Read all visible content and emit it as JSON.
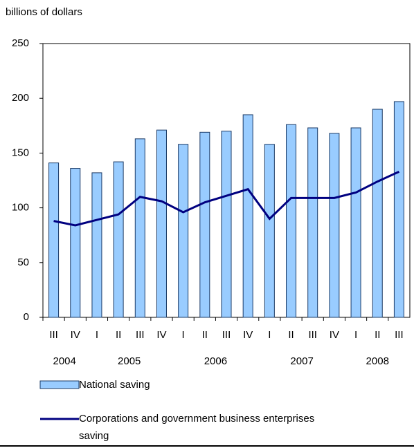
{
  "chart_data": {
    "type": "bar_line",
    "y_label": "billions of dollars",
    "categories": [
      "III",
      "IV",
      "I",
      "II",
      "III",
      "IV",
      "I",
      "II",
      "III",
      "IV",
      "I",
      "II",
      "III",
      "IV",
      "I",
      "II",
      "III"
    ],
    "years": [
      "2004",
      "2005",
      "2006",
      "2007",
      "2008"
    ],
    "series": [
      {
        "name": "National saving",
        "type": "bar",
        "color": "#99ccff",
        "values": [
          141,
          136,
          132,
          142,
          163,
          171,
          158,
          169,
          170,
          185,
          158,
          176,
          173,
          168,
          173,
          190,
          197
        ]
      },
      {
        "name": "Corporations and government business enterprises saving",
        "type": "line",
        "color": "#000080",
        "values": [
          88,
          84,
          89,
          94,
          110,
          106,
          96,
          105,
          111,
          117,
          90,
          109,
          109,
          109,
          114,
          124,
          133
        ]
      }
    ],
    "ylim": [
      0,
      250
    ],
    "yticks": [
      0,
      50,
      100,
      150,
      200,
      250
    ]
  }
}
